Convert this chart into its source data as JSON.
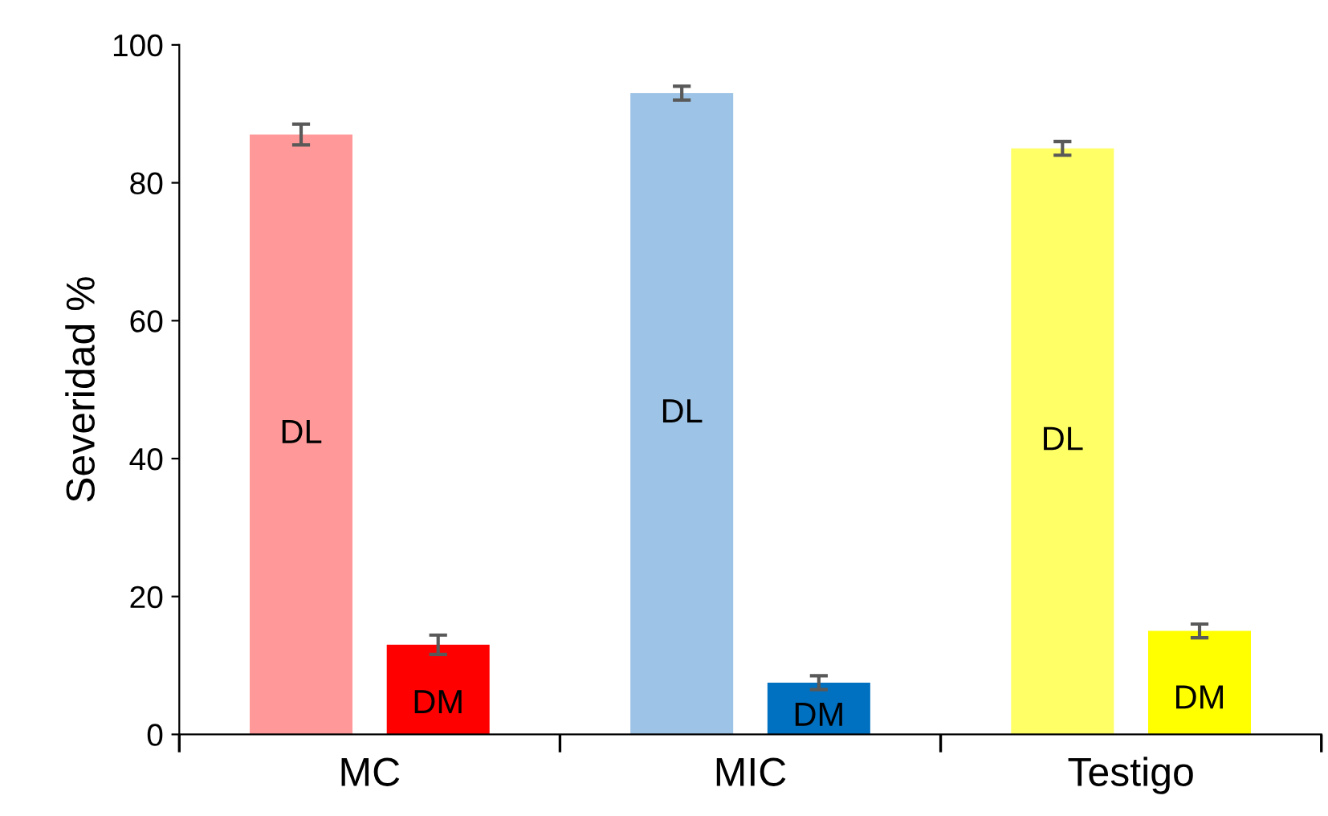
{
  "chart_data": {
    "type": "bar",
    "ylabel": "Severidad %",
    "categories": [
      "MC",
      "MIC",
      "Testigo"
    ],
    "series": [
      {
        "name": "DL",
        "colors": [
          "#ff9999",
          "#9dc3e6",
          "#ffff66"
        ],
        "values": [
          87,
          93,
          85
        ],
        "errors": [
          1.5,
          1,
          1
        ]
      },
      {
        "name": "DM",
        "colors": [
          "#ff0000",
          "#0070c0",
          "#ffff00"
        ],
        "values": [
          13,
          7.5,
          15
        ],
        "errors": [
          1.4,
          1,
          1
        ]
      }
    ],
    "ylim": [
      0,
      100
    ],
    "yticks": [
      0,
      20,
      40,
      60,
      80,
      100
    ],
    "grid": false,
    "legend": false
  }
}
